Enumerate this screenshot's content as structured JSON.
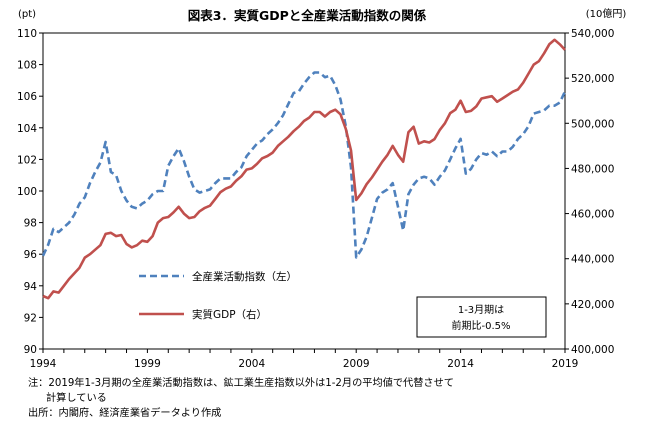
{
  "chart_data": {
    "type": "line",
    "title": "図表3．実質GDPと全産業活動指数の関係",
    "left_axis": {
      "unit": "(pt)",
      "ylim": [
        90,
        110
      ],
      "ticks": [
        90,
        92,
        94,
        96,
        98,
        100,
        102,
        104,
        106,
        108,
        110
      ]
    },
    "right_axis": {
      "unit": "(10億円)",
      "ylim": [
        400000,
        540000
      ],
      "ticks": [
        400000,
        420000,
        440000,
        460000,
        480000,
        500000,
        520000,
        540000
      ],
      "tick_labels": [
        "400,000",
        "420,000",
        "440,000",
        "460,000",
        "480,000",
        "500,000",
        "520,000",
        "540,000"
      ]
    },
    "x_range": [
      1994,
      2019
    ],
    "x_tick_labels": [
      "1994",
      "1999",
      "2004",
      "2009",
      "2014",
      "2019"
    ],
    "legend_position": "middle-left",
    "series": [
      {
        "name": "全産業活動指数（左）",
        "axis": "left",
        "style": "dashed",
        "color": "#4f81bd",
        "x": [
          1994.0,
          1994.25,
          1994.5,
          1994.75,
          1995.0,
          1995.25,
          1995.5,
          1995.75,
          1996.0,
          1996.25,
          1996.5,
          1996.75,
          1997.0,
          1997.25,
          1997.5,
          1997.75,
          1998.0,
          1998.25,
          1998.5,
          1998.75,
          1999.0,
          1999.25,
          1999.5,
          1999.75,
          2000.0,
          2000.25,
          2000.5,
          2000.75,
          2001.0,
          2001.25,
          2001.5,
          2001.75,
          2002.0,
          2002.25,
          2002.5,
          2002.75,
          2003.0,
          2003.25,
          2003.5,
          2003.75,
          2004.0,
          2004.25,
          2004.5,
          2004.75,
          2005.0,
          2005.25,
          2005.5,
          2005.75,
          2006.0,
          2006.25,
          2006.5,
          2006.75,
          2007.0,
          2007.25,
          2007.5,
          2007.75,
          2008.0,
          2008.25,
          2008.5,
          2008.75,
          2009.0,
          2009.25,
          2009.5,
          2009.75,
          2010.0,
          2010.25,
          2010.5,
          2010.75,
          2011.0,
          2011.25,
          2011.5,
          2011.75,
          2012.0,
          2012.25,
          2012.5,
          2012.75,
          2013.0,
          2013.25,
          2013.5,
          2013.75,
          2014.0,
          2014.25,
          2014.5,
          2014.75,
          2015.0,
          2015.25,
          2015.5,
          2015.75,
          2016.0,
          2016.25,
          2016.5,
          2016.75,
          2017.0,
          2017.25,
          2017.5,
          2017.75,
          2018.0,
          2018.25,
          2018.5,
          2018.75,
          2019.0
        ],
        "y": [
          95.9,
          96.6,
          97.6,
          97.4,
          97.7,
          98.0,
          98.5,
          99.2,
          99.6,
          100.5,
          101.2,
          101.8,
          103.1,
          101.2,
          101.0,
          100.0,
          99.4,
          99.0,
          98.9,
          99.2,
          99.4,
          99.8,
          100.0,
          100.0,
          101.6,
          102.2,
          102.7,
          101.9,
          100.9,
          100.1,
          99.9,
          100.0,
          100.1,
          100.5,
          100.8,
          100.8,
          100.8,
          101.2,
          101.5,
          102.2,
          102.6,
          103.0,
          103.2,
          103.6,
          103.9,
          104.3,
          104.8,
          105.5,
          106.2,
          106.3,
          106.8,
          107.2,
          107.5,
          107.5,
          107.2,
          107.3,
          106.7,
          105.8,
          104.1,
          101.5,
          95.8,
          96.3,
          97.1,
          98.3,
          99.5,
          99.9,
          100.1,
          100.5,
          99.0,
          97.5,
          99.8,
          100.4,
          100.8,
          100.9,
          100.8,
          100.4,
          100.9,
          101.3,
          102.0,
          102.7,
          103.3,
          101.1,
          101.4,
          102.0,
          102.4,
          102.3,
          102.5,
          102.2,
          102.5,
          102.5,
          102.8,
          103.3,
          103.6,
          104.1,
          104.9,
          105.0,
          105.1,
          105.4,
          105.4,
          105.6,
          106.3
        ]
      },
      {
        "name": "実質GDP（右）",
        "axis": "right",
        "style": "solid",
        "color": "#c0504d",
        "x": [
          1994.0,
          1994.25,
          1994.5,
          1994.75,
          1995.0,
          1995.25,
          1995.5,
          1995.75,
          1996.0,
          1996.25,
          1996.5,
          1996.75,
          1997.0,
          1997.25,
          1997.5,
          1997.75,
          1998.0,
          1998.25,
          1998.5,
          1998.75,
          1999.0,
          1999.25,
          1999.5,
          1999.75,
          2000.0,
          2000.25,
          2000.5,
          2000.75,
          2001.0,
          2001.25,
          2001.5,
          2001.75,
          2002.0,
          2002.25,
          2002.5,
          2002.75,
          2003.0,
          2003.25,
          2003.5,
          2003.75,
          2004.0,
          2004.25,
          2004.5,
          2004.75,
          2005.0,
          2005.25,
          2005.5,
          2005.75,
          2006.0,
          2006.25,
          2006.5,
          2006.75,
          2007.0,
          2007.25,
          2007.5,
          2007.75,
          2008.0,
          2008.25,
          2008.5,
          2008.75,
          2009.0,
          2009.25,
          2009.5,
          2009.75,
          2010.0,
          2010.25,
          2010.5,
          2010.75,
          2011.0,
          2011.25,
          2011.5,
          2011.75,
          2012.0,
          2012.25,
          2012.5,
          2012.75,
          2013.0,
          2013.25,
          2013.5,
          2013.75,
          2014.0,
          2014.25,
          2014.5,
          2014.75,
          2015.0,
          2015.25,
          2015.5,
          2015.75,
          2016.0,
          2016.25,
          2016.5,
          2016.75,
          2017.0,
          2017.25,
          2017.5,
          2017.75,
          2018.0,
          2018.25,
          2018.5,
          2018.75,
          2019.0
        ],
        "y": [
          423500,
          422500,
          425500,
          425000,
          428000,
          431000,
          433500,
          436000,
          440500,
          442000,
          444000,
          446000,
          451000,
          451500,
          450000,
          450500,
          446500,
          445000,
          446000,
          448000,
          447500,
          450000,
          456000,
          458000,
          458500,
          460500,
          463000,
          460000,
          458000,
          458500,
          461000,
          462500,
          463500,
          466500,
          469500,
          471000,
          472000,
          474500,
          476500,
          479500,
          480000,
          482000,
          484500,
          485500,
          487000,
          490000,
          492000,
          494000,
          496500,
          498500,
          501000,
          502500,
          505000,
          505000,
          503000,
          505000,
          506000,
          504000,
          497500,
          488000,
          466000,
          469000,
          473000,
          476000,
          479500,
          483000,
          486000,
          490000,
          486000,
          483000,
          496000,
          498500,
          491000,
          492000,
          491500,
          493000,
          497000,
          500000,
          504500,
          506000,
          510000,
          505000,
          505500,
          507500,
          511000,
          511500,
          512000,
          509500,
          511000,
          512500,
          514000,
          515000,
          518000,
          522000,
          526000,
          527500,
          531000,
          535000,
          537000,
          535000,
          532500
        ]
      }
    ],
    "annotation": [
      "1-3月期は",
      "前期比-0.5%"
    ],
    "notes": [
      "注：2019年1-3月期の全産業活動指数は、鉱工業生産指数以外は1-2月の平均値で代替させて",
      "計算している",
      "出所：内閣府、経済産業省データより作成"
    ]
  }
}
